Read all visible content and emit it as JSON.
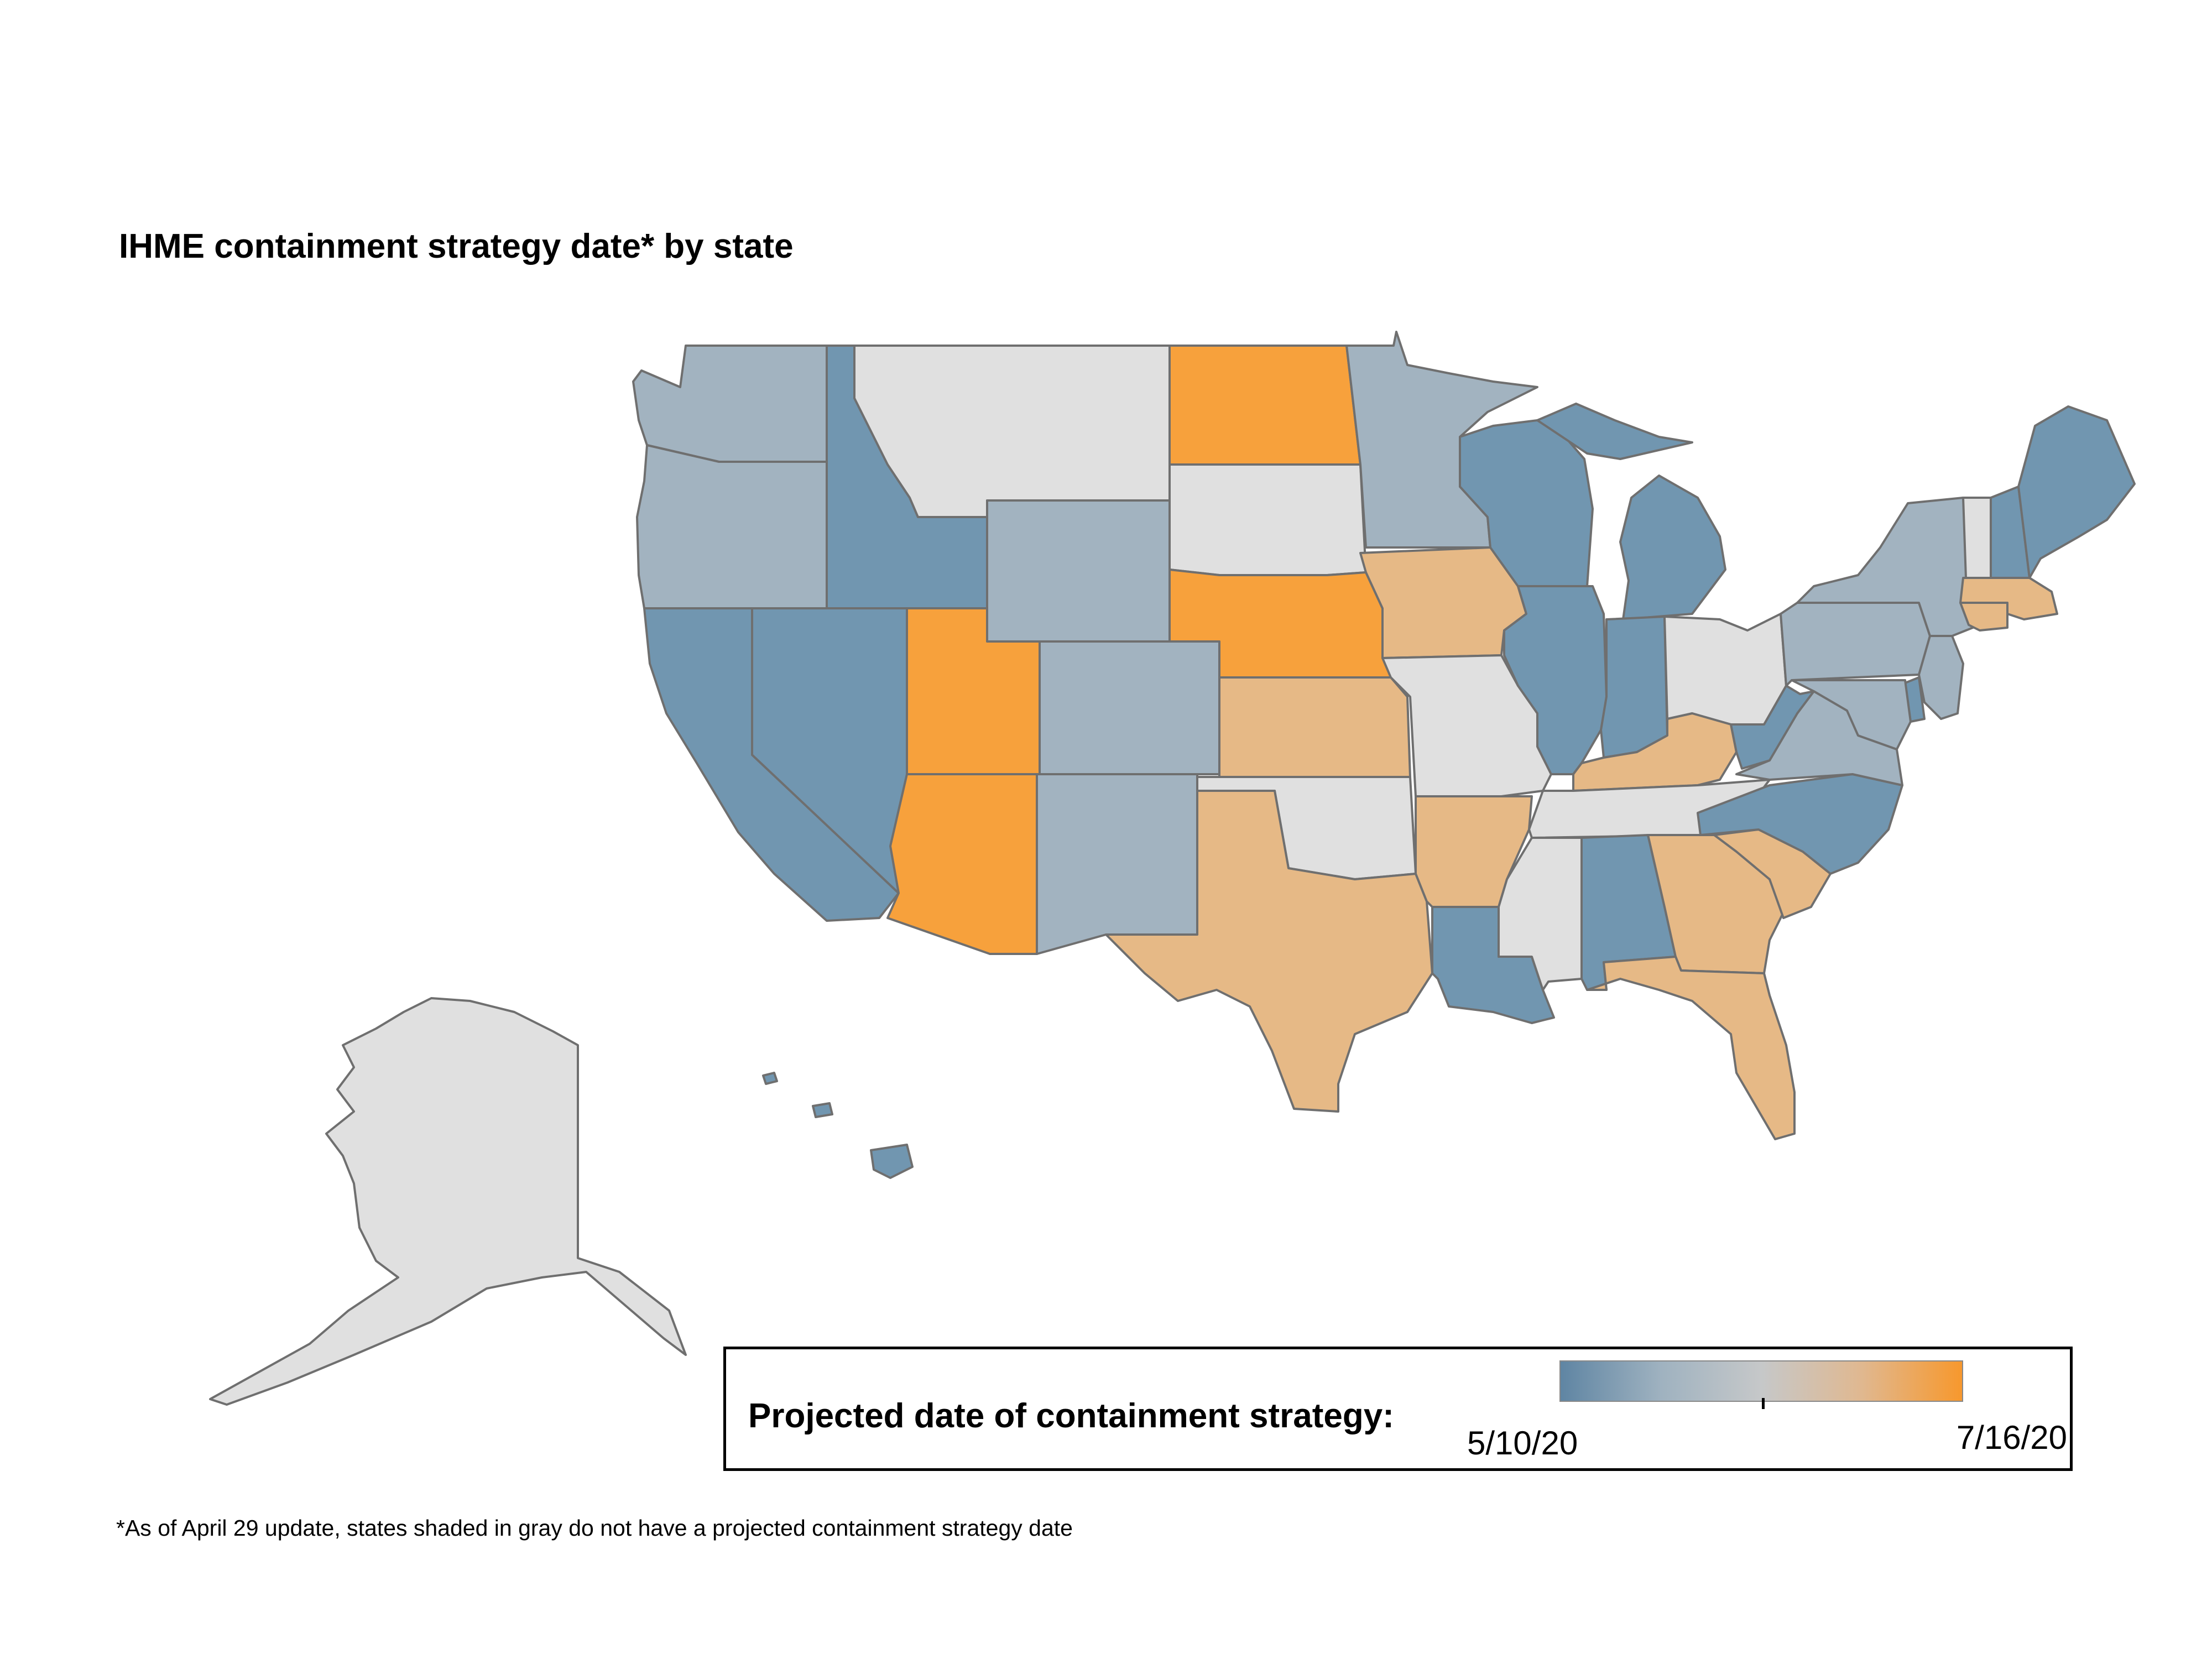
{
  "title": "IHME containment strategy date* by state",
  "footnote": "*As of April 29 update, states shaded in gray do not have a projected containment strategy date",
  "legend": {
    "label": "Projected date of containment strategy:",
    "min_label": "5/10/20",
    "max_label": "7/16/20",
    "gradient_colors": [
      "#5f85a3",
      "#9fb2c0",
      "#c6c8c9",
      "#e0b890",
      "#f7982d"
    ]
  },
  "colors": {
    "early": "#7196b0",
    "mid_early": "#a2b3c0",
    "mid_late": "#e6b986",
    "late": "#f7a13c",
    "no_date": "#e0e0e0"
  },
  "states": {
    "WA": "mid_early",
    "OR": "mid_early",
    "CA": "early",
    "NV": "early",
    "ID": "early",
    "MT": "no_date",
    "WY": "mid_early",
    "UT": "late",
    "AZ": "late",
    "CO": "mid_early",
    "NM": "mid_early",
    "ND": "late",
    "SD": "no_date",
    "NE": "late",
    "KS": "mid_late",
    "OK": "no_date",
    "TX": "mid_late",
    "MN": "mid_early",
    "IA": "mid_late",
    "MO": "no_date",
    "AR": "mid_late",
    "LA": "early",
    "WI": "early",
    "IL": "early",
    "MI": "early",
    "IN": "early",
    "OH": "no_date",
    "KY": "mid_late",
    "TN": "no_date",
    "MS": "no_date",
    "AL": "early",
    "GA": "mid_late",
    "FL": "mid_late",
    "SC": "mid_late",
    "NC": "early",
    "VA": "mid_early",
    "WV": "early",
    "PA": "mid_early",
    "NY": "mid_early",
    "NJ": "mid_early",
    "DE": "early",
    "MD": "mid_early",
    "CT": "mid_late",
    "MA": "mid_late",
    "VT": "no_date",
    "NH": "early",
    "ME": "early",
    "AK": "no_date",
    "HI": "early"
  }
}
